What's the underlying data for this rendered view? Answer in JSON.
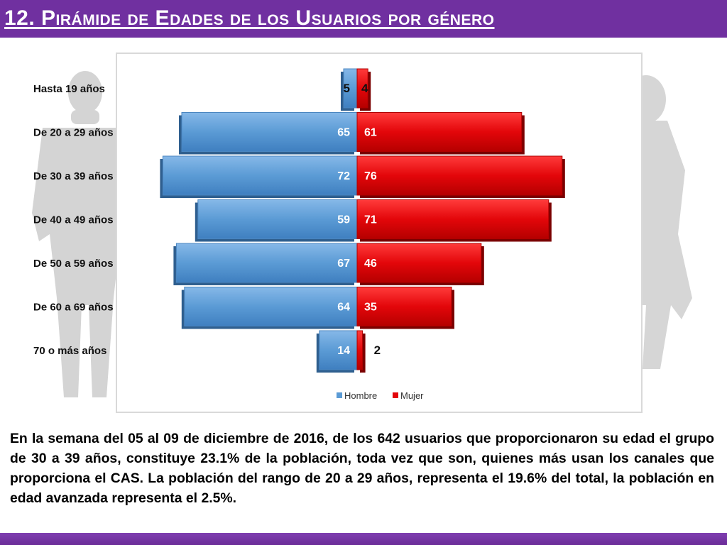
{
  "header": {
    "title": "12. Pirámide de Edades de los Usuarios por género"
  },
  "colors": {
    "header_bg": "#7030a0",
    "hombre": "#5b9bd5",
    "mujer": "#e3060a"
  },
  "chart_data": {
    "type": "bar",
    "orientation": "horizontal-pyramid",
    "categories": [
      "Hasta 19 años",
      "De 20 a 29 años",
      "De 30 a 39 años",
      "De 40 a 49 años",
      "De 50 a 59 años",
      "De 60 a 69 años",
      "70 o más años"
    ],
    "series": [
      {
        "name": "Hombre",
        "values": [
          5,
          65,
          72,
          59,
          67,
          64,
          14
        ],
        "color": "#5b9bd5",
        "side": "left"
      },
      {
        "name": "Mujer",
        "values": [
          4,
          61,
          76,
          71,
          46,
          35,
          2
        ],
        "color": "#e3060a",
        "side": "right"
      }
    ],
    "legend": "bottom",
    "grid": false
  },
  "caption": {
    "text": "En la semana del 05 al 09 de diciembre de 2016, de los 642 usuarios  que proporcionaron su edad el grupo de 30 a 39 años,  constituye 23.1% de la población, toda vez que son, quienes más usan los canales que proporciona el CAS. La población del rango de 20 a 29 años, representa el 19.6% del total, la población en edad avanzada representa el 2.5%."
  }
}
